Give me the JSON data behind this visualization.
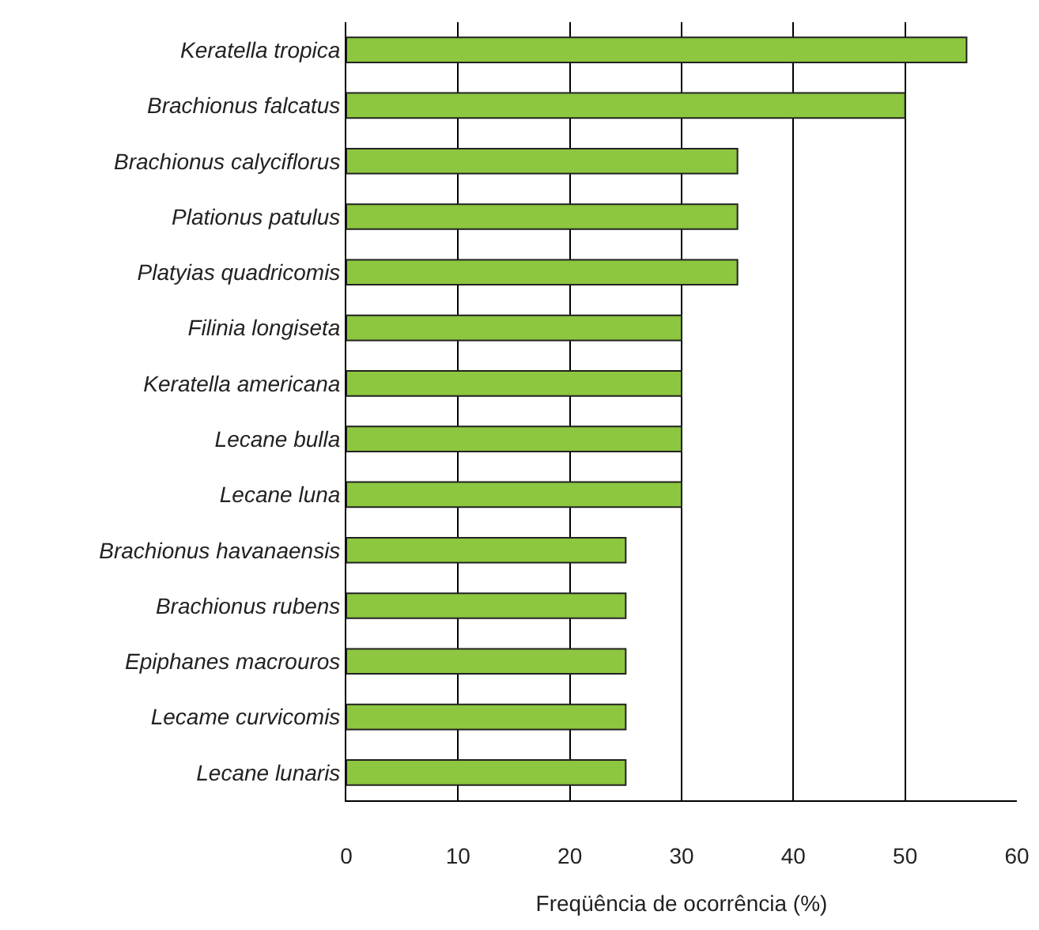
{
  "chart_data": {
    "type": "bar",
    "orientation": "horizontal",
    "xlabel": "Freqüência de ocorrência (%)",
    "categories": [
      "Keratella tropica",
      "Brachionus falcatus",
      "Brachionus calyciflorus",
      "Plationus patulus",
      "Platyias quadricomis",
      "Filinia longiseta",
      "Keratella americana",
      "Lecane bulla",
      "Lecane luna",
      "Brachionus havanaensis",
      "Brachionus rubens",
      "Epiphanes macrouros",
      "Lecame curvicomis",
      "Lecane lunaris"
    ],
    "values": [
      55.5,
      50,
      35,
      35,
      35,
      30,
      30,
      30,
      30,
      25,
      25,
      25,
      25,
      25
    ],
    "color": "#8dc63f",
    "xlim": [
      0,
      60
    ],
    "xticks": [
      0,
      10,
      20,
      30,
      40,
      50,
      60
    ],
    "grid": "x"
  }
}
